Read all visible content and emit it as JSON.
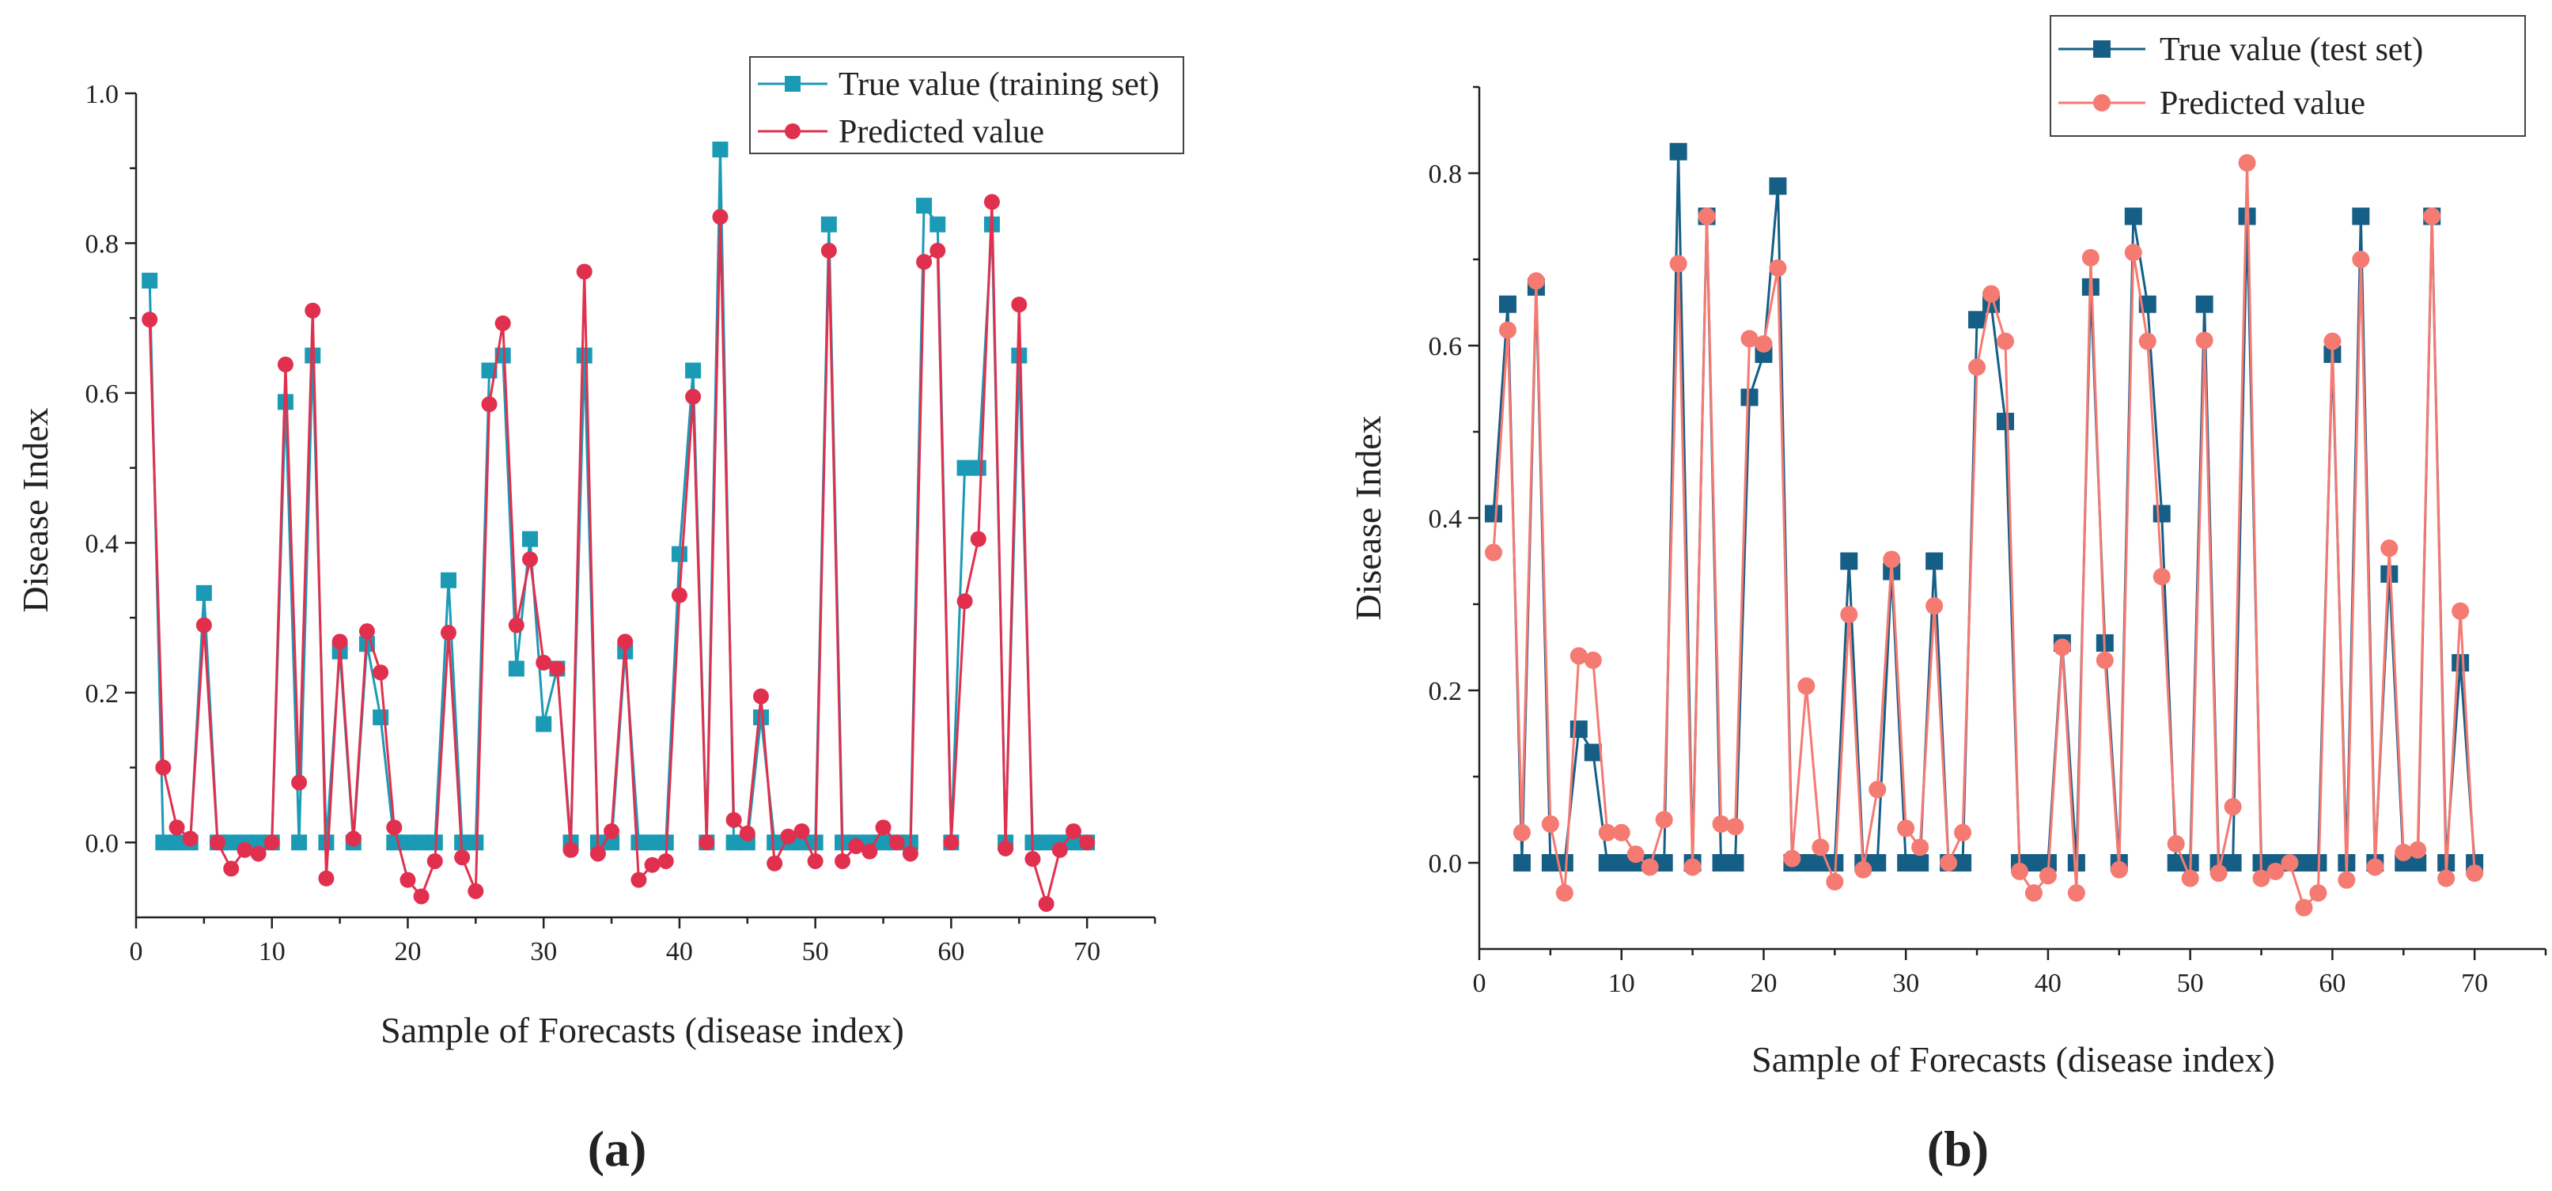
{
  "chart_data": [
    {
      "type": "line",
      "panel_label": "(a)",
      "xlabel": "Sample of Forecasts (disease index)",
      "ylabel": "Disease Index",
      "xlim": [
        0,
        75
      ],
      "ylim": [
        -0.1,
        1.0
      ],
      "xticks": [
        0,
        10,
        20,
        30,
        40,
        50,
        60,
        70
      ],
      "yticks": [
        0.0,
        0.2,
        0.4,
        0.6,
        0.8,
        1.0
      ],
      "ytick_labels": [
        "0.0",
        "0.2",
        "0.4",
        "0.6",
        "0.8",
        "1.0"
      ],
      "legend_position": "top-right",
      "series": [
        {
          "name": "True value (training set)",
          "color": "#1b9ab5",
          "marker": "square",
          "values": [
            0.75,
            0,
            0,
            0,
            0.333,
            0,
            0,
            0,
            0,
            0,
            0.588,
            0,
            0.65,
            0,
            0.255,
            0,
            0.265,
            0.167,
            0,
            0,
            0,
            0,
            0.35,
            0,
            0,
            0.63,
            0.65,
            0.232,
            0.405,
            0.158,
            0.232,
            0,
            0.65,
            0,
            0,
            0.255,
            0,
            0,
            0,
            0.385,
            0.63,
            0,
            0.925,
            0,
            0,
            0.167,
            0,
            0,
            0,
            0,
            0.825,
            0,
            0,
            0,
            0,
            0,
            0,
            0.85,
            0.825,
            0,
            0.5,
            0.5,
            0.825,
            0,
            0.65,
            0,
            0,
            0,
            0,
            0
          ]
        },
        {
          "name": "Predicted value",
          "color": "#e0304e",
          "marker": "circle",
          "values": [
            0.698,
            0.1,
            0.02,
            0.005,
            0.29,
            0,
            -0.035,
            -0.01,
            -0.015,
            0,
            0.638,
            0.08,
            0.71,
            -0.048,
            0.268,
            0.005,
            0.282,
            0.227,
            0.02,
            -0.05,
            -0.072,
            -0.025,
            0.28,
            -0.02,
            -0.065,
            0.585,
            0.693,
            0.29,
            0.378,
            0.24,
            0.232,
            -0.01,
            0.762,
            -0.015,
            0.015,
            0.268,
            -0.05,
            -0.03,
            -0.025,
            0.33,
            0.595,
            0,
            0.835,
            0.03,
            0.012,
            0.195,
            -0.028,
            0.008,
            0.015,
            -0.025,
            0.79,
            -0.025,
            -0.005,
            -0.012,
            0.02,
            0,
            -0.015,
            0.775,
            0.79,
            0,
            0.322,
            0.405,
            0.855,
            -0.008,
            0.718,
            -0.022,
            -0.082,
            -0.01,
            0.015,
            0
          ]
        }
      ]
    },
    {
      "type": "line",
      "panel_label": "(b)",
      "xlabel": "Sample of Forecasts (disease index)",
      "ylabel": "Disease Index",
      "xlim": [
        0,
        75
      ],
      "ylim": [
        -0.1,
        0.9
      ],
      "xticks": [
        0,
        10,
        20,
        30,
        40,
        50,
        60,
        70
      ],
      "yticks": [
        0.0,
        0.2,
        0.4,
        0.6,
        0.8
      ],
      "ytick_labels": [
        "0.0",
        "0.2",
        "0.4",
        "0.6",
        "0.8"
      ],
      "legend_position": "top-right",
      "series": [
        {
          "name": "True value (test set)",
          "color": "#155e85",
          "marker": "square",
          "values": [
            0.405,
            0.648,
            0,
            0.668,
            0,
            0,
            0.155,
            0.128,
            0,
            0,
            0,
            0,
            0,
            0.825,
            0,
            0.75,
            0,
            0,
            0.54,
            0.59,
            0.785,
            0,
            0,
            0,
            0,
            0.35,
            0,
            0,
            0.338,
            0,
            0,
            0.35,
            0,
            0,
            0.63,
            0.648,
            0.512,
            0,
            0,
            0,
            0.255,
            0,
            0.668,
            0.255,
            0,
            0.75,
            0.648,
            0.405,
            0,
            0,
            0.648,
            0,
            0,
            0.75,
            0,
            0,
            0,
            0,
            0,
            0.59,
            0,
            0.75,
            0,
            0.335,
            0,
            0,
            0.75,
            0,
            0.232,
            0
          ]
        },
        {
          "name": "Predicted value",
          "color": "#f47a72",
          "marker": "circle",
          "values": [
            0.36,
            0.618,
            0.035,
            0.675,
            0.045,
            -0.035,
            0.24,
            0.235,
            0.035,
            0.035,
            0.01,
            -0.005,
            0.05,
            0.695,
            -0.005,
            0.75,
            0.045,
            0.042,
            0.608,
            0.602,
            0.69,
            0.005,
            0.205,
            0.018,
            -0.022,
            0.288,
            -0.008,
            0.085,
            0.352,
            0.04,
            0.018,
            0.298,
            0,
            0.035,
            0.575,
            0.66,
            0.605,
            -0.01,
            -0.035,
            -0.015,
            0.25,
            -0.035,
            0.702,
            0.235,
            -0.008,
            0.708,
            0.605,
            0.332,
            0.022,
            -0.018,
            0.606,
            -0.012,
            0.065,
            0.812,
            -0.018,
            -0.01,
            0,
            -0.052,
            -0.035,
            0.605,
            -0.02,
            0.7,
            -0.005,
            0.365,
            0.012,
            0.015,
            0.75,
            -0.018,
            0.292,
            -0.012
          ]
        }
      ]
    }
  ]
}
